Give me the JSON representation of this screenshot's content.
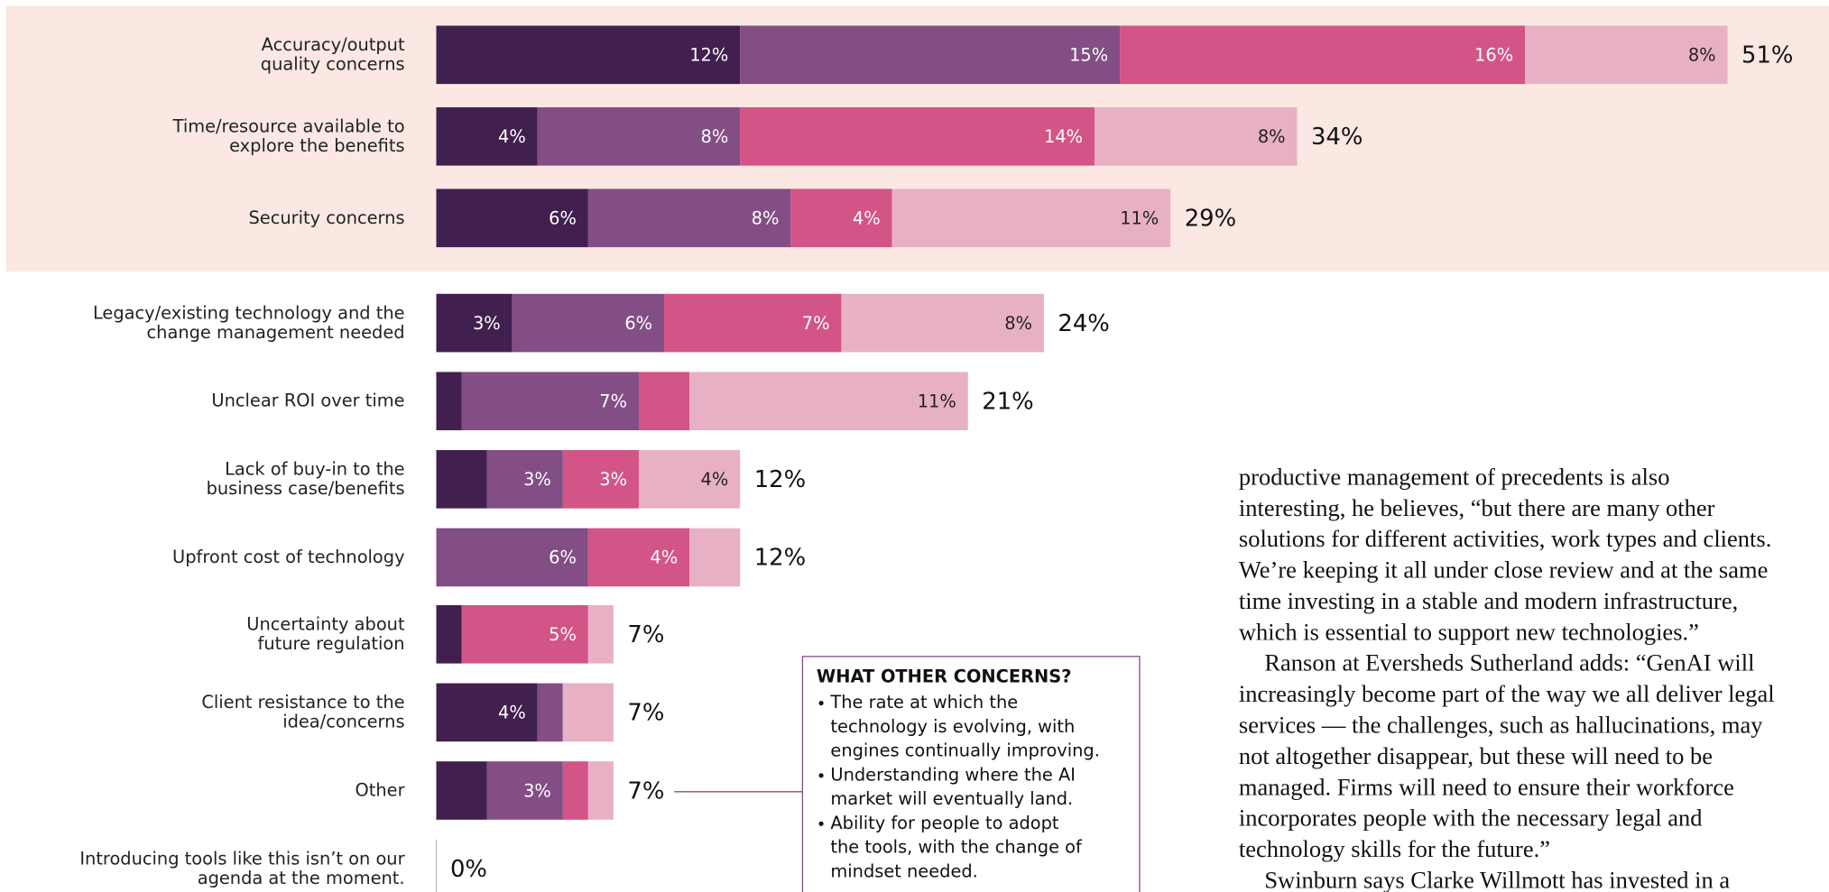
{
  "chart_data": {
    "type": "stacked-bar-horizontal",
    "categories": [
      "Accuracy/output\nquality concerns",
      "Time/resource available to\nexplore the benefits",
      "Security concerns",
      "Legacy/existing technology and the\nchange management needed",
      "Unclear ROI over time",
      "Lack of buy-in to the\nbusiness case/benefits",
      "Upfront cost of technology",
      "Uncertainty about\nfuture regulation",
      "Client resistance to the\nidea/concerns",
      "Other",
      "Introducing tools like this isn’t on our\nagenda at the moment."
    ],
    "series": [
      {
        "color": "#41204f",
        "values": [
          12,
          4,
          6,
          3,
          1,
          2,
          0,
          1,
          4,
          2,
          0
        ],
        "value_labels": [
          "12%",
          "4%",
          "6%",
          "3%",
          null,
          null,
          null,
          null,
          "4%",
          null,
          null
        ]
      },
      {
        "color": "#834d86",
        "values": [
          15,
          8,
          8,
          6,
          7,
          3,
          6,
          0,
          1,
          3,
          0
        ],
        "value_labels": [
          "15%",
          "8%",
          "8%",
          "6%",
          "7%",
          "3%",
          "6%",
          null,
          null,
          "3%",
          null
        ]
      },
      {
        "color": "#d35486",
        "values": [
          16,
          14,
          4,
          7,
          2,
          3,
          4,
          5,
          0,
          1,
          0
        ],
        "value_labels": [
          "16%",
          "14%",
          "4%",
          "7%",
          null,
          "3%",
          "4%",
          "5%",
          null,
          null,
          null
        ]
      },
      {
        "color": "#e8b0c5",
        "values": [
          8,
          8,
          11,
          8,
          11,
          4,
          2,
          1,
          2,
          1,
          0
        ],
        "value_labels": [
          "8%",
          "8%",
          "11%",
          "8%",
          "11%",
          "4%",
          null,
          null,
          null,
          null,
          null
        ]
      }
    ],
    "totals": [
      51,
      34,
      29,
      24,
      21,
      12,
      12,
      7,
      7,
      7,
      0
    ],
    "total_labels": [
      "51%",
      "34%",
      "29%",
      "24%",
      "21%",
      "12%",
      "12%",
      "7%",
      "7%",
      "7%",
      "0%"
    ],
    "xlim": [
      0,
      51
    ],
    "highlight_rows": 3,
    "highlight_color": "#fbe8e2"
  },
  "callout": {
    "title": "WHAT OTHER CONCERNS?",
    "items": [
      [
        "The rate at which the",
        "technology is evolving, with",
        "engines continually improving."
      ],
      [
        "Understanding where the AI",
        "market will eventually land."
      ],
      [
        "Ability for people to adopt",
        "the tools, with the change of",
        "mindset needed."
      ]
    ]
  },
  "article": {
    "paragraphs": [
      [
        "productive management of precedents is also",
        "interesting, he believes, “but there are many other",
        "solutions for different activities, work types and clients.",
        "We’re keeping it all under close review and at the same",
        "time investing in a stable and modern infrastructure,",
        "which is essential to support new technologies.”"
      ],
      [
        "Ranson at Eversheds Sutherland adds: “GenAI will",
        "increasingly become part of the way we all deliver legal",
        "services — the challenges, such as hallucinations, may",
        "not altogether disappear, but these will need to be",
        "managed. Firms will need to ensure their workforce",
        "incorporates people with the necessary legal and",
        "technology skills for the future.”"
      ],
      [
        "Swinburn says Clarke Willmott has invested in a"
      ]
    ]
  }
}
